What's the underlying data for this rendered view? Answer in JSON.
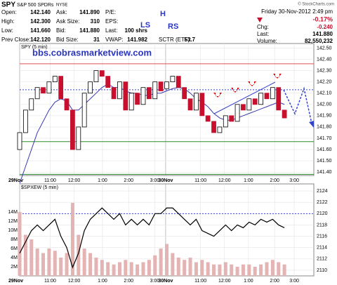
{
  "header": {
    "symbol": "SPY",
    "name": "S&P 500 SPDRs",
    "exchange": "NYSE",
    "copyright": "© StockCharts.com",
    "date": "Friday   30-Nov-2012   2:49 pm",
    "pct_change": "-0.17%",
    "columns": [
      [
        {
          "label": "Open:",
          "value": "142.140"
        },
        {
          "label": "High:",
          "value": "142.300"
        },
        {
          "label": "Low:",
          "value": "141.660"
        },
        {
          "label": "Prev Close:",
          "value": "142.120"
        }
      ],
      [
        {
          "label": "Ask:",
          "value": "141.890"
        },
        {
          "label": "Ask Size:",
          "value": "310"
        },
        {
          "label": "Bid:",
          "value": "141.880"
        },
        {
          "label": "Bid Size:",
          "value": "31"
        }
      ],
      [
        {
          "label": "P/E:"
        },
        {
          "label": "EPS:"
        },
        {
          "label": "Last:",
          "value": "100 shrs"
        },
        {
          "label": "VWAP:",
          "value": "141.982"
        }
      ]
    ],
    "sctr": {
      "label": "SCTR (ETF):",
      "value": "53.7"
    },
    "right": [
      {
        "label": "Chg:",
        "value": "-0.240"
      },
      {
        "label": "Last:",
        "value": "141.880"
      },
      {
        "label": "Volume:",
        "value": "82,550,232"
      }
    ]
  },
  "chart_data": [
    {
      "type": "candlestick",
      "title": "SPY (5 min)",
      "watermark": "bbs.cobrasmarketview.com",
      "annotations": [
        "H",
        "LS",
        "RS"
      ],
      "x": [
        0,
        2.7,
        5.4,
        8.1,
        10.8,
        13.5,
        16.2,
        18.9,
        21.6,
        24.3,
        27,
        29.7,
        32.4,
        35.1,
        37.8,
        40.5,
        43.2,
        45.9,
        48.6,
        51.3,
        54,
        56.7,
        59.4,
        62.1,
        64.8,
        67.5,
        70.2,
        72.9,
        75.6,
        78.3,
        81,
        83.7,
        86.4,
        89.1,
        91.8,
        94.5,
        97.2,
        99.9,
        102.6,
        105.3,
        108,
        110.7,
        113.4,
        116.1,
        118.8,
        121.5
      ],
      "open": [
        141.6,
        141.75,
        141.95,
        142.05,
        142.15,
        142.1,
        142.2,
        142.25,
        142.05,
        141.95,
        141.6,
        141.8,
        142.1,
        142.2,
        142.3,
        142.25,
        142.15,
        142.05,
        142.2,
        141.95,
        142.1,
        142,
        142.15,
        142.05,
        142.2,
        142.14,
        142.2,
        142.25,
        142.15,
        142.05,
        141.95,
        142.1,
        141.9,
        141.85,
        141.75,
        141.8,
        141.9,
        141.85,
        142,
        141.95,
        142.05,
        142,
        142.1,
        142.05,
        142.15,
        141.95
      ],
      "close": [
        141.75,
        141.95,
        142.05,
        142.15,
        142.1,
        142.2,
        142.25,
        142.05,
        141.95,
        141.6,
        141.8,
        142.1,
        142.2,
        142.3,
        142.25,
        142.15,
        142.05,
        142.2,
        141.95,
        142.1,
        142,
        142.15,
        142.05,
        142.2,
        142.12,
        142.2,
        142.25,
        142.15,
        142.05,
        141.95,
        142.1,
        141.9,
        141.85,
        141.75,
        141.8,
        141.9,
        141.85,
        142,
        141.95,
        142.05,
        142,
        142.1,
        142.05,
        142.15,
        141.95,
        141.88
      ],
      "up_color": "#ffffff",
      "down_color": "#c8102e",
      "ma": {
        "color": "#3a3ab0",
        "values": [
          141.3,
          141.45,
          141.6,
          141.75,
          141.85,
          141.95,
          142.02,
          142.05,
          142.03,
          141.95,
          141.95,
          142,
          142.05,
          142.1,
          142.15,
          142.18,
          142.15,
          142.15,
          142.12,
          142.1,
          142.1,
          142.08,
          142.08,
          142.1,
          142.1,
          142.12,
          142.14,
          142.15,
          142.14,
          142.1,
          142.05,
          142.02,
          141.98,
          141.92,
          141.88,
          141.86,
          141.86,
          141.88,
          141.9,
          141.92,
          141.94,
          141.96,
          141.98,
          142,
          142.02,
          142
        ]
      },
      "levels": [
        {
          "value": 142.36,
          "color": "#e05050"
        },
        {
          "value": 141.67,
          "color": "#2e8b2e"
        },
        {
          "value": 141.38,
          "color": "#2e8b2e"
        },
        {
          "value": 142.13,
          "color": "#3344cc",
          "dash": true
        }
      ],
      "xlim": [
        0,
        135
      ],
      "xticks": [
        {
          "value": 0,
          "label": "29Nov"
        },
        {
          "value": 14,
          "label": "11:00"
        },
        {
          "value": 25,
          "label": "12:00"
        },
        {
          "value": 38,
          "label": "1:00"
        },
        {
          "value": 50,
          "label": "2:00"
        },
        {
          "value": 62,
          "label": "3:00"
        },
        {
          "value": 67,
          "label": "30Nov"
        },
        {
          "value": 83,
          "label": "11:00"
        },
        {
          "value": 94,
          "label": "12:00"
        },
        {
          "value": 105,
          "label": "1:00"
        },
        {
          "value": 117,
          "label": "2:00"
        },
        {
          "value": 126,
          "label": "3:00"
        }
      ],
      "ylim": [
        141.37,
        142.54
      ],
      "yticks": [
        {
          "value": 141.4,
          "label": "141.40"
        },
        {
          "value": 141.5,
          "label": "141.50"
        },
        {
          "value": 141.6,
          "label": "141.60"
        },
        {
          "value": 141.7,
          "label": "141.70"
        },
        {
          "value": 141.8,
          "label": "141.80"
        },
        {
          "value": 141.9,
          "label": "141.90"
        },
        {
          "value": 142,
          "label": "142.00"
        },
        {
          "value": 142.1,
          "label": "142.10"
        },
        {
          "value": 142.2,
          "label": "142.20"
        },
        {
          "value": 142.3,
          "label": "142.30"
        },
        {
          "value": 142.4,
          "label": "142.40"
        },
        {
          "value": 142.5,
          "label": "142.50"
        }
      ],
      "grid": true
    },
    {
      "type": "combo",
      "title": "$SPXEW (5 min)",
      "x": [
        0,
        2.7,
        5.4,
        8.1,
        10.8,
        13.5,
        16.2,
        18.9,
        21.6,
        24.3,
        27,
        29.7,
        32.4,
        35.1,
        37.8,
        40.5,
        43.2,
        45.9,
        48.6,
        51.3,
        54,
        56.7,
        59.4,
        62.1,
        64.8,
        67.5,
        70.2,
        72.9,
        75.6,
        78.3,
        81,
        83.7,
        86.4,
        89.1,
        91.8,
        94.5,
        97.2,
        99.9,
        102.6,
        105.3,
        108,
        110.7,
        113.4,
        116.1,
        118.8,
        121.5
      ],
      "series": [
        {
          "axis": "y",
          "color": "#e4b4b4",
          "values": [
            14000000,
            9000000,
            8000000,
            6000000,
            5000000,
            6000000,
            5500000,
            4000000,
            5000000,
            16000000,
            9000000,
            6000000,
            5000000,
            4000000,
            3500000,
            3000000,
            2500000,
            3000000,
            3500000,
            3000000,
            2500000,
            3000000,
            3500000,
            4500000,
            6000000,
            7000000,
            5000000,
            4000000,
            3500000,
            4000000,
            3000000,
            3500000,
            3000000,
            2500000,
            2500000,
            3000000,
            2500000,
            2000000,
            2500000,
            2500000,
            2000000,
            2500000,
            3000000,
            3500000,
            3000000,
            2500000
          ]
        },
        {
          "axis": "y2",
          "color": "#000000",
          "values": [
            2113,
            2115,
            2117,
            2118,
            2117,
            2118,
            2119,
            2116,
            2114,
            2110.5,
            2113,
            2117,
            2119,
            2120,
            2121,
            2120,
            2119,
            2120,
            2118,
            2119,
            2118,
            2119,
            2118,
            2120,
            2120,
            2121,
            2121,
            2120,
            2119,
            2118,
            2119,
            2117,
            2116.5,
            2116,
            2117,
            2118,
            2117,
            2118,
            2117.5,
            2118.5,
            2118,
            2119,
            2118.5,
            2119,
            2118,
            2117.5
          ]
        }
      ],
      "xlim": [
        0,
        135
      ],
      "xticks": [
        {
          "value": 0,
          "label": "29Nov"
        },
        {
          "value": 14,
          "label": "11:00"
        },
        {
          "value": 25,
          "label": "12:00"
        },
        {
          "value": 38,
          "label": "1:00"
        },
        {
          "value": 50,
          "label": "2:00"
        },
        {
          "value": 62,
          "label": "3:00"
        },
        {
          "value": 67,
          "label": "30Nov"
        },
        {
          "value": 83,
          "label": "11:00"
        },
        {
          "value": 94,
          "label": "12:00"
        },
        {
          "value": 105,
          "label": "1:00"
        },
        {
          "value": 117,
          "label": "2:00"
        },
        {
          "value": 126,
          "label": "3:00"
        }
      ],
      "ylim": [
        0,
        20150000
      ],
      "yticks": [
        {
          "value": 2000000,
          "label": "2M"
        },
        {
          "value": 4000000,
          "label": "4M"
        },
        {
          "value": 6000000,
          "label": "6M"
        },
        {
          "value": 8000000,
          "label": "8M"
        },
        {
          "value": 10000000,
          "label": "10M"
        },
        {
          "value": 12000000,
          "label": "12M"
        },
        {
          "value": 14000000,
          "label": "14M"
        }
      ],
      "y2lim": [
        2109,
        2125.25
      ],
      "y2ticks": [
        2110,
        2112,
        2114,
        2116,
        2118,
        2120,
        2122,
        2124
      ],
      "level": {
        "value": 2120,
        "color": "#3344cc",
        "dash": true
      },
      "grid": true
    }
  ]
}
